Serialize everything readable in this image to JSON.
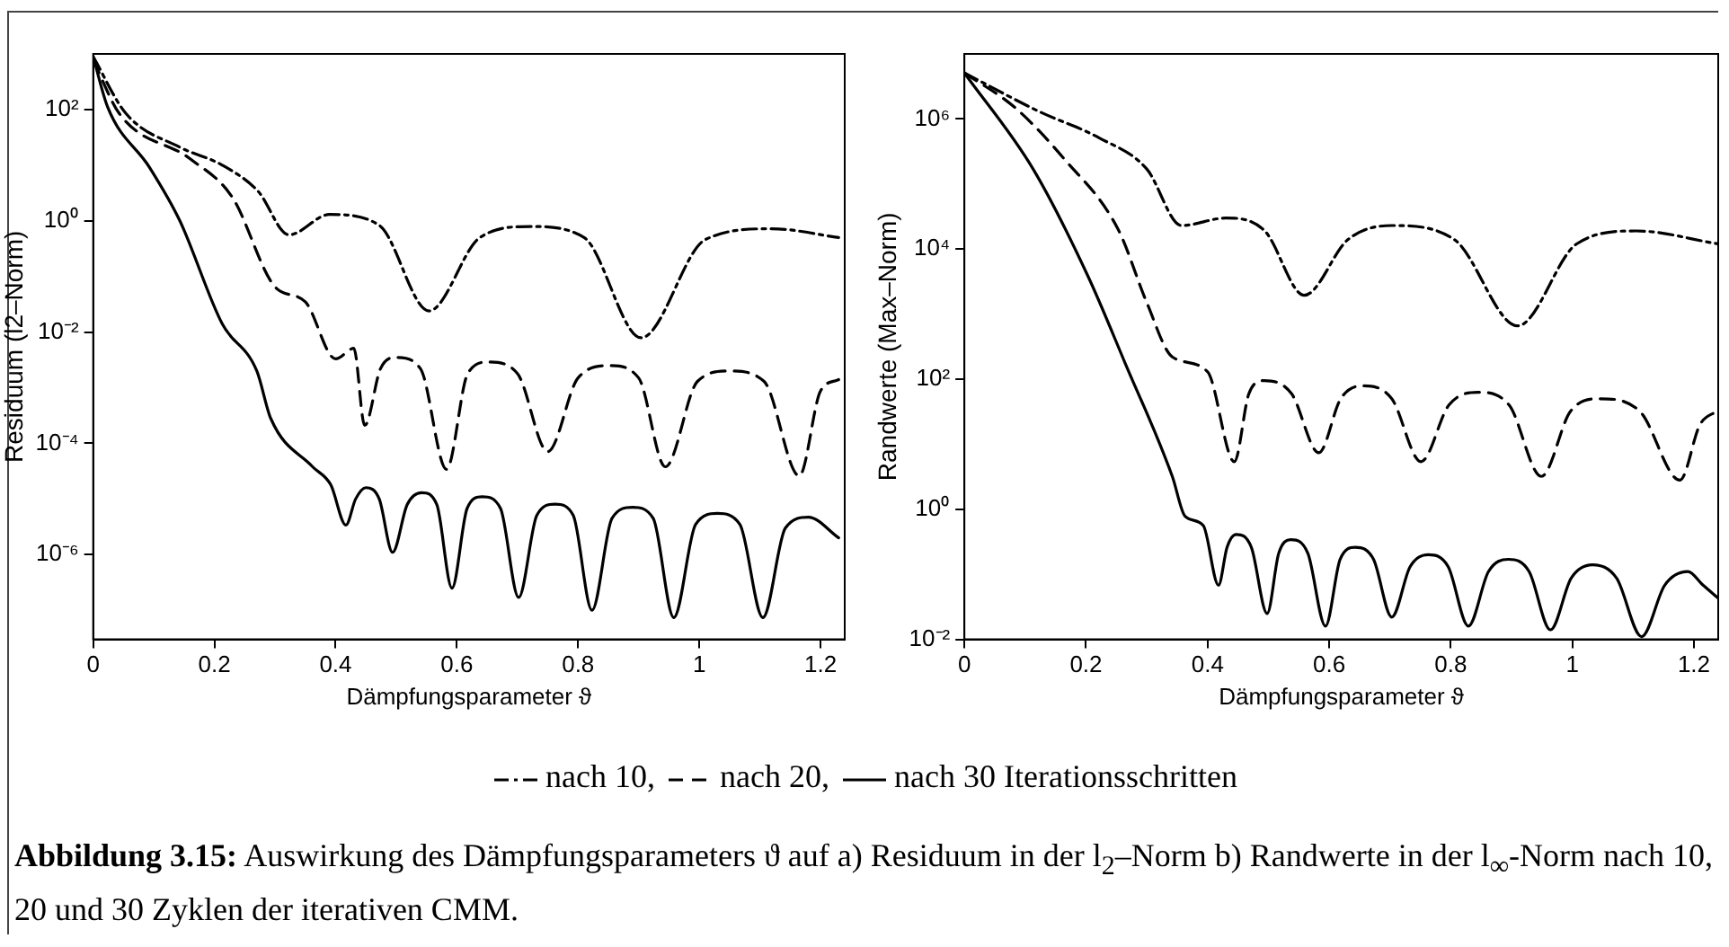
{
  "chart_data": [
    {
      "type": "line",
      "xlabel": "Dämpfungsparameter ϑ",
      "ylabel": "Residuum (l2–Norm)",
      "log": "y",
      "xlim": [
        0,
        1.24
      ],
      "xticks": [
        0,
        0.2,
        0.4,
        0.6,
        0.8,
        1,
        1.2
      ],
      "ylim": [
        3e-08,
        1000
      ],
      "yticks": [
        {
          "value": 1e-06,
          "label": "10⁻⁶"
        },
        {
          "value": 0.0001,
          "label": "10⁻⁴"
        },
        {
          "value": 0.01,
          "label": "10⁻²"
        },
        {
          "value": 1,
          "label": "10⁰"
        },
        {
          "value": 100,
          "label": "10²"
        }
      ],
      "legend": "bottom",
      "grid": false,
      "marker": "none",
      "annotations": [
        "Abbildung 3.15: Auswirkung des Dämpfungsparameters ϑ auf a) Residuum in der l$_{2}$–Norm b) Randwerte in der l$_{∞}$-Norm nach 10, 20 und 30 Zyklen der iterativen CMM."
      ],
      "series": [
        {
          "name": "nach 10,",
          "color": "#000000",
          "line_style": "dashdot",
          "x": [
            0,
            0.054,
            0.143,
            0.213,
            0.272,
            0.323,
            0.39,
            0.472,
            0.554,
            0.638,
            0.721,
            0.81,
            0.904,
            1.01,
            1.12,
            1.23
          ],
          "values": [
            890,
            85,
            21,
            10,
            3.4,
            0.56,
            1.3,
            0.83,
            0.024,
            0.5,
            0.79,
            0.5,
            0.0079,
            0.46,
            0.72,
            0.5
          ]
        },
        {
          "name": "nach 20,",
          "color": "#000000",
          "line_style": "dashed",
          "x": [
            0,
            0.043,
            0.16,
            0.23,
            0.3,
            0.35,
            0.4,
            0.43,
            0.448,
            0.474,
            0.5,
            0.54,
            0.583,
            0.618,
            0.652,
            0.7,
            0.75,
            0.8,
            0.852,
            0.9,
            0.944,
            0.997,
            1.05,
            1.107,
            1.165,
            1.2,
            1.23
          ],
          "values": [
            790,
            85,
            13,
            2.6,
            0.065,
            0.035,
            0.0033,
            0.0051,
            0.00021,
            0.0022,
            0.0035,
            0.0022,
            3.4e-05,
            0.0018,
            0.0029,
            0.0018,
            7.1e-05,
            0.0015,
            0.0025,
            0.0015,
            3.8e-05,
            0.0013,
            0.002,
            0.0013,
            2.6e-05,
            0.00087,
            0.0014
          ]
        },
        {
          "name": "nach 30 Iterationsschritten",
          "color": "#000000",
          "line_style": "solid",
          "x": [
            0,
            0.024,
            0.093,
            0.143,
            0.213,
            0.27,
            0.293,
            0.362,
            0.392,
            0.417,
            0.433,
            0.45,
            0.472,
            0.494,
            0.518,
            0.542,
            0.567,
            0.592,
            0.617,
            0.642,
            0.672,
            0.702,
            0.732,
            0.762,
            0.792,
            0.823,
            0.856,
            0.89,
            0.924,
            0.958,
            0.994,
            1.03,
            1.067,
            1.105,
            1.142,
            1.18,
            1.23
          ],
          "values": [
            890,
            110,
            9.1,
            1,
            0.014,
            0.002,
            0.00028,
            3.8e-05,
            1.8e-05,
            3.4e-06,
            1e-05,
            1.6e-05,
            1e-05,
            1.1e-06,
            7.9e-06,
            1.3e-05,
            7.9e-06,
            2.5e-07,
            6.8e-06,
            1.1e-05,
            6.8e-06,
            1.7e-07,
            5.1e-06,
            8.1e-06,
            5.1e-06,
            1e-07,
            4.5e-06,
            7.1e-06,
            4.5e-06,
            7.4e-08,
            3.5e-06,
            5.5e-06,
            3.5e-06,
            7.4e-08,
            3e-06,
            4.7e-06,
            2e-06
          ]
        }
      ]
    },
    {
      "type": "line",
      "xlabel": "Dämpfungsparameter ϑ",
      "ylabel": "Randwerte (Max–Norm)",
      "log": "y",
      "xlim": [
        0,
        1.24
      ],
      "xticks": [
        0,
        0.2,
        0.4,
        0.6,
        0.8,
        1,
        1.2
      ],
      "ylim": [
        0.01,
        10000000
      ],
      "yticks": [
        {
          "value": 0.01,
          "label": "10⁻²"
        },
        {
          "value": 1,
          "label": "10⁰"
        },
        {
          "value": 100,
          "label": "10²"
        },
        {
          "value": 10000,
          "label": "10⁴"
        },
        {
          "value": 1000000,
          "label": "10⁶"
        }
      ],
      "grid": false,
      "marker": "none",
      "series": [
        {
          "color": "#000000",
          "line_style": "dashdot",
          "x": [
            0,
            0.123,
            0.222,
            0.3,
            0.357,
            0.43,
            0.494,
            0.559,
            0.631,
            0.703,
            0.806,
            0.91,
            1.007,
            1.105,
            1.24
          ],
          "values": [
            5100000,
            1300000,
            510000,
            170000,
            23000,
            30000,
            19000,
            1950,
            14000,
            23000,
            14000,
            660,
            12000,
            19000,
            12000
          ]
        },
        {
          "color": "#000000",
          "line_style": "dashed",
          "x": [
            0,
            0.083,
            0.163,
            0.253,
            0.3,
            0.342,
            0.4,
            0.444,
            0.468,
            0.493,
            0.538,
            0.583,
            0.619,
            0.655,
            0.703,
            0.751,
            0.797,
            0.844,
            0.896,
            0.949,
            0.997,
            1.045,
            1.111,
            1.177,
            1.21,
            1.24
          ],
          "values": [
            5100000,
            1500000,
            250000,
            20000,
            1500,
            220,
            130,
            5.4,
            60,
            95,
            60,
            7.4,
            50,
            79,
            50,
            5.4,
            40,
            63,
            40,
            3.2,
            32,
            50,
            32,
            2.8,
            20,
            33
          ]
        },
        {
          "color": "#000000",
          "line_style": "solid",
          "x": [
            0,
            0.113,
            0.204,
            0.264,
            0.342,
            0.363,
            0.393,
            0.418,
            0.432,
            0.447,
            0.472,
            0.498,
            0.517,
            0.537,
            0.565,
            0.594,
            0.618,
            0.643,
            0.673,
            0.703,
            0.733,
            0.763,
            0.796,
            0.829,
            0.862,
            0.895,
            0.929,
            0.964,
            0.998,
            1.033,
            1.073,
            1.114,
            1.152,
            1.19,
            1.215,
            1.24
          ],
          "values": [
            5100000,
            170000,
            3700,
            180,
            3.2,
            0.78,
            0.56,
            0.068,
            0.26,
            0.41,
            0.26,
            0.025,
            0.21,
            0.34,
            0.21,
            0.016,
            0.17,
            0.26,
            0.17,
            0.022,
            0.13,
            0.2,
            0.13,
            0.016,
            0.11,
            0.17,
            0.11,
            0.014,
            0.087,
            0.14,
            0.087,
            0.011,
            0.068,
            0.11,
            0.068,
            0.043
          ]
        }
      ]
    }
  ]
}
